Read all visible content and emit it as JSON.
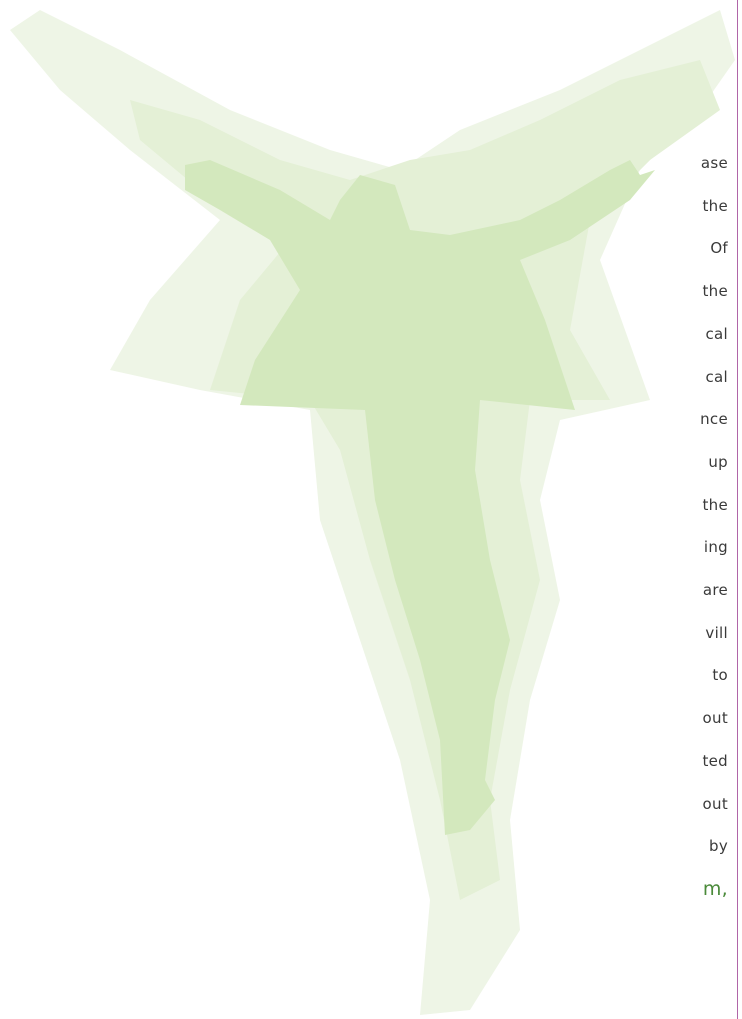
{
  "text_fragments": [
    "ase",
    "the",
    "Of",
    "the",
    "cal",
    "cal",
    "nce",
    "up",
    "the",
    "ing",
    "are",
    "vill",
    "to",
    "out",
    "ted",
    "out",
    "by",
    "m,"
  ]
}
